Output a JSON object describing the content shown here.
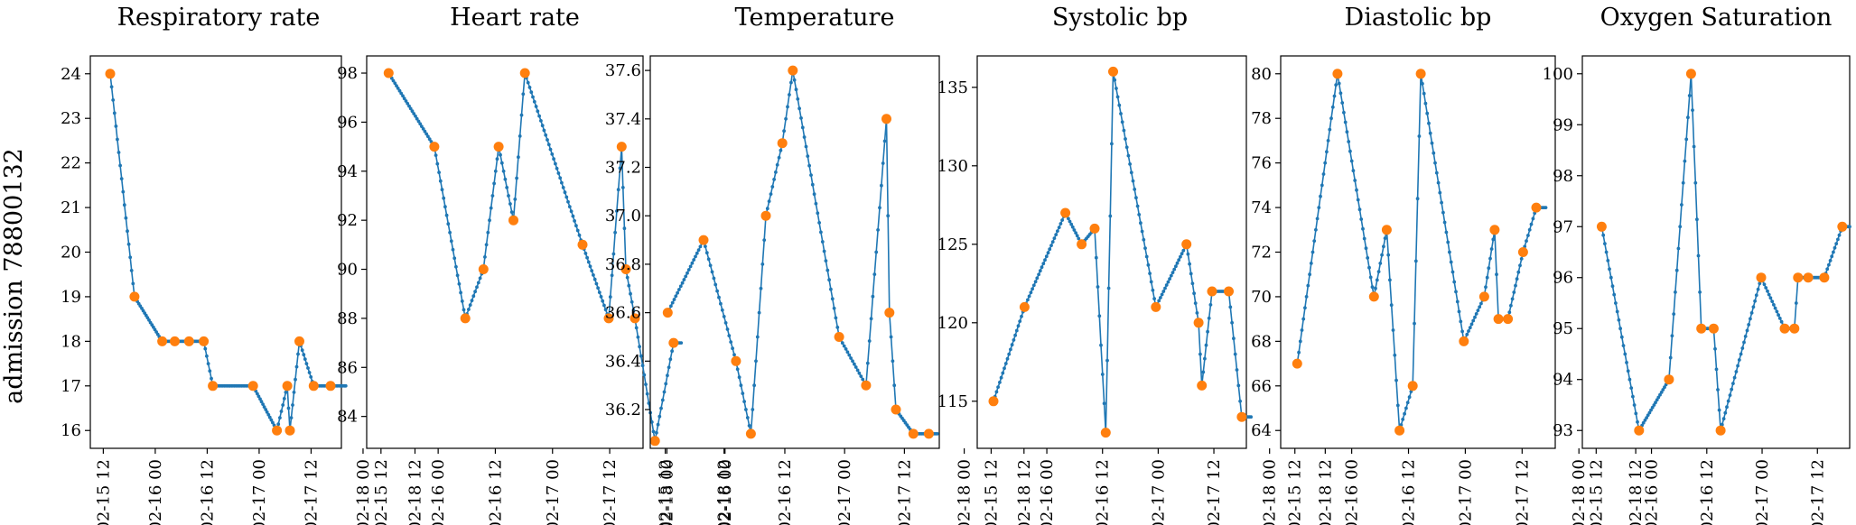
{
  "row_label": "admission 78800132",
  "colors": {
    "line": "#1f77b4",
    "marker": "#ff7f0e"
  },
  "time_ticks": [
    "02-15 12",
    "02-16 00",
    "02-16 12",
    "02-17 00",
    "02-17 12",
    "02-18 00",
    "02-18 12"
  ],
  "chart_data": [
    {
      "type": "line",
      "title": "Respiratory rate",
      "xlabel": "",
      "ylabel": "",
      "x_range_hours": [
        -3,
        55
      ],
      "ylim": [
        15.6,
        24.4
      ],
      "yticks": [
        16,
        17,
        18,
        19,
        20,
        21,
        22,
        23,
        24
      ],
      "ytick_labels": [
        "16",
        "17",
        "18",
        "19",
        "20",
        "21",
        "22",
        "23",
        "24"
      ],
      "observed": [
        [
          1.6,
          24
        ],
        [
          7.2,
          19
        ],
        [
          13.6,
          18
        ],
        [
          16.5,
          18
        ],
        [
          19.8,
          18
        ],
        [
          23.2,
          18
        ],
        [
          25.3,
          17
        ],
        [
          34.6,
          17
        ],
        [
          40.1,
          16
        ],
        [
          42.5,
          17
        ],
        [
          43.1,
          16
        ],
        [
          45.3,
          18
        ],
        [
          48.6,
          17
        ],
        [
          52.5,
          17
        ]
      ],
      "line_end_hours": 56
    },
    {
      "type": "line",
      "title": "Heart rate",
      "xlabel": "",
      "ylabel": "",
      "x_range_hours": [
        -3,
        55
      ],
      "ylim": [
        82.7,
        98.7
      ],
      "yticks": [
        84,
        86,
        88,
        90,
        92,
        94,
        96,
        98
      ],
      "ytick_labels": [
        "84",
        "86",
        "88",
        "90",
        "92",
        "94",
        "96",
        "98"
      ],
      "observed": [
        [
          1.6,
          98
        ],
        [
          11.2,
          95
        ],
        [
          17.7,
          88
        ],
        [
          21.5,
          90
        ],
        [
          24.7,
          95
        ],
        [
          27.8,
          92
        ],
        [
          30.2,
          98
        ],
        [
          42.3,
          91
        ],
        [
          47.8,
          88
        ],
        [
          50.5,
          95
        ],
        [
          51.4,
          90
        ],
        [
          53.3,
          88
        ],
        [
          57.5,
          83
        ],
        [
          61.4,
          87
        ]
      ],
      "line_end_hours": 63
    },
    {
      "type": "line",
      "title": "Temperature",
      "xlabel": "",
      "ylabel": "",
      "x_range_hours": [
        -3,
        55
      ],
      "ylim": [
        36.04,
        37.66
      ],
      "yticks": [
        36.2,
        36.4,
        36.6,
        36.8,
        37.0,
        37.2,
        37.4,
        37.6
      ],
      "ytick_labels": [
        "36.2",
        "36.4",
        "36.6",
        "36.8",
        "37.0",
        "37.2",
        "37.4",
        "37.6"
      ],
      "observed": [
        [
          0.5,
          36.6
        ],
        [
          7.7,
          36.9
        ],
        [
          14.2,
          36.4
        ],
        [
          17.2,
          36.1
        ],
        [
          20.2,
          37.0
        ],
        [
          23.5,
          37.3
        ],
        [
          25.6,
          37.6
        ],
        [
          34.9,
          36.5
        ],
        [
          40.3,
          36.3
        ],
        [
          44.4,
          37.4
        ],
        [
          45.0,
          36.6
        ],
        [
          46.3,
          36.2
        ],
        [
          49.8,
          36.1
        ],
        [
          52.9,
          36.1
        ]
      ],
      "line_end_hours": 54.6
    },
    {
      "type": "line",
      "title": "Systolic bp",
      "xlabel": "",
      "ylabel": "",
      "x_range_hours": [
        -3,
        55
      ],
      "ylim": [
        112.0,
        137.0
      ],
      "yticks": [
        115,
        120,
        125,
        130,
        135
      ],
      "ytick_labels": [
        "115",
        "120",
        "125",
        "130",
        "135"
      ],
      "observed": [
        [
          0.5,
          115
        ],
        [
          7.2,
          121
        ],
        [
          16.0,
          127
        ],
        [
          19.5,
          125
        ],
        [
          22.3,
          126
        ],
        [
          24.7,
          113
        ],
        [
          26.3,
          136
        ],
        [
          35.5,
          121
        ],
        [
          42.1,
          125
        ],
        [
          44.7,
          120
        ],
        [
          45.4,
          116
        ],
        [
          47.6,
          122
        ],
        [
          51.2,
          122
        ],
        [
          54.0,
          114
        ]
      ],
      "line_end_hours": 56
    },
    {
      "type": "line",
      "title": "Diastolic bp",
      "xlabel": "",
      "ylabel": "",
      "x_range_hours": [
        -3,
        55
      ],
      "ylim": [
        63.2,
        80.8
      ],
      "yticks": [
        64,
        66,
        68,
        70,
        72,
        74,
        76,
        78,
        80
      ],
      "ytick_labels": [
        "64",
        "66",
        "68",
        "70",
        "72",
        "74",
        "76",
        "78",
        "80"
      ],
      "observed": [
        [
          0.5,
          67
        ],
        [
          9.0,
          80
        ],
        [
          16.7,
          70
        ],
        [
          19.4,
          73
        ],
        [
          22.1,
          64
        ],
        [
          24.9,
          66
        ],
        [
          26.6,
          80
        ],
        [
          35.7,
          68
        ],
        [
          40.0,
          70
        ],
        [
          42.2,
          73
        ],
        [
          43.0,
          69
        ],
        [
          45.0,
          69
        ],
        [
          48.2,
          72
        ],
        [
          51.0,
          74
        ]
      ],
      "line_end_hours": 53
    },
    {
      "type": "line",
      "title": "Oxygen Saturation",
      "xlabel": "",
      "ylabel": "",
      "x_range_hours": [
        -3,
        55
      ],
      "ylim": [
        92.65,
        100.35
      ],
      "yticks": [
        93,
        94,
        95,
        96,
        97,
        98,
        99,
        100
      ],
      "ytick_labels": [
        "93",
        "94",
        "95",
        "96",
        "97",
        "98",
        "99",
        "100"
      ],
      "observed": [
        [
          1.2,
          97
        ],
        [
          9.3,
          93
        ],
        [
          15.8,
          94
        ],
        [
          20.6,
          100
        ],
        [
          22.8,
          95
        ],
        [
          25.5,
          95
        ],
        [
          27.0,
          93
        ],
        [
          35.8,
          96
        ],
        [
          40.9,
          95
        ],
        [
          43.0,
          95
        ],
        [
          43.8,
          96
        ],
        [
          46.0,
          96
        ],
        [
          49.5,
          96
        ],
        [
          53.4,
          97
        ]
      ],
      "line_end_hours": 55
    }
  ]
}
